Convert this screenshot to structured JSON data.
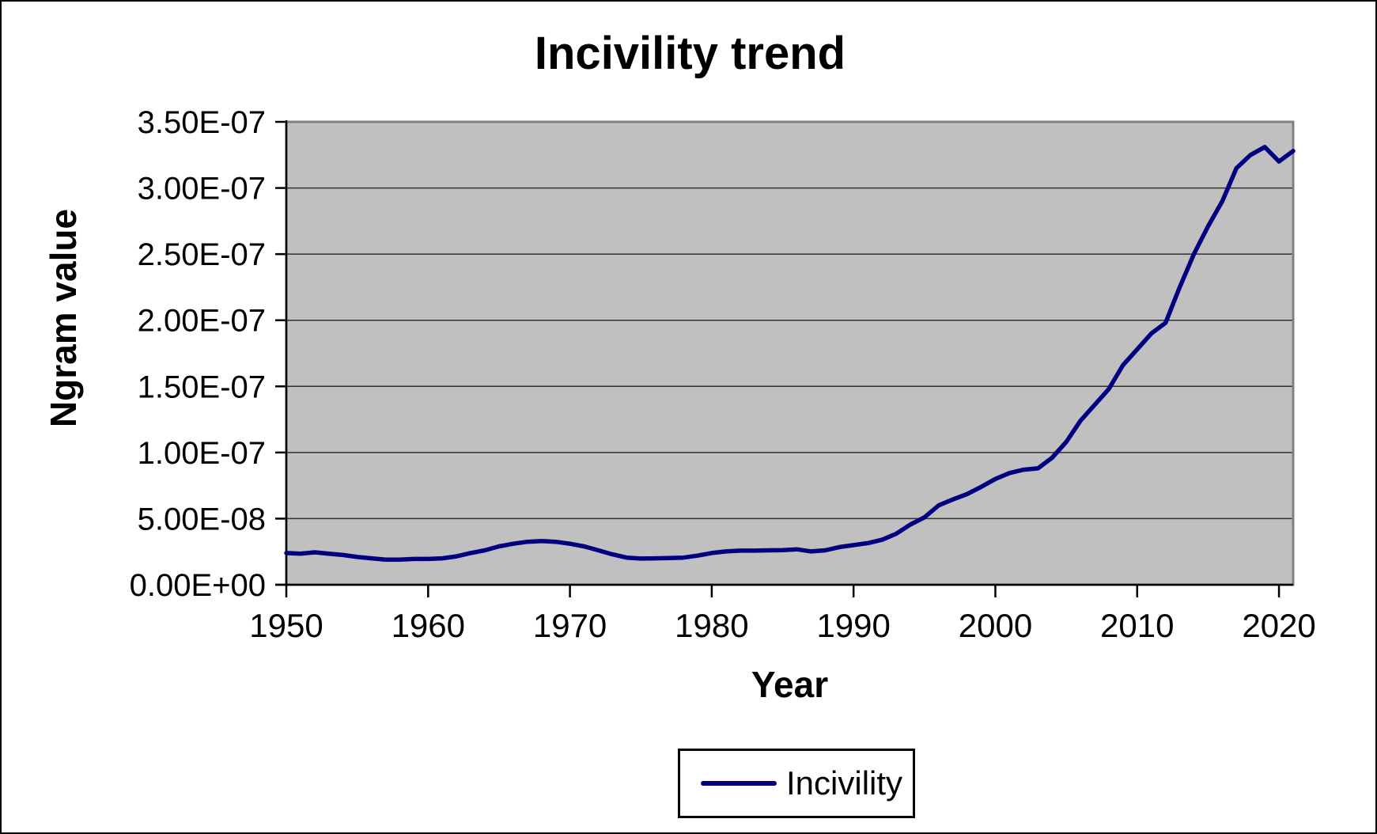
{
  "chart_data": {
    "type": "line",
    "title": "Incivility trend",
    "xlabel": "Year",
    "ylabel": "Ngram value",
    "legend": [
      "Incivility"
    ],
    "legend_position": "bottom",
    "grid": true,
    "ylim": [
      0,
      3.5e-07
    ],
    "xlim": [
      1950,
      2021
    ],
    "y_tick_labels": [
      "3.50E-07",
      "3.00E-07",
      "2.50E-07",
      "2.00E-07",
      "1.50E-07",
      "1.00E-07",
      "5.00E-08",
      "0.00E+00"
    ],
    "y_tick_values": [
      3.5e-07,
      3e-07,
      2.5e-07,
      2e-07,
      1.5e-07,
      1e-07,
      5e-08,
      0
    ],
    "x_ticks": [
      1950,
      1960,
      1970,
      1980,
      1990,
      2000,
      2010,
      2020
    ],
    "x": [
      1950,
      1951,
      1952,
      1953,
      1954,
      1955,
      1956,
      1957,
      1958,
      1959,
      1960,
      1961,
      1962,
      1963,
      1964,
      1965,
      1966,
      1967,
      1968,
      1969,
      1970,
      1971,
      1972,
      1973,
      1974,
      1975,
      1976,
      1977,
      1978,
      1979,
      1980,
      1981,
      1982,
      1983,
      1984,
      1985,
      1986,
      1987,
      1988,
      1989,
      1990,
      1991,
      1992,
      1993,
      1994,
      1995,
      1996,
      1997,
      1998,
      1999,
      2000,
      2001,
      2002,
      2003,
      2004,
      2005,
      2006,
      2007,
      2008,
      2009,
      2010,
      2011,
      2012,
      2013,
      2014,
      2015,
      2016,
      2017,
      2018,
      2019,
      2020,
      2021
    ],
    "series": [
      {
        "name": "Incivility",
        "values": [
          2.4e-08,
          2.35e-08,
          2.45e-08,
          2.35e-08,
          2.25e-08,
          2.1e-08,
          2e-08,
          1.9e-08,
          1.9e-08,
          1.95e-08,
          1.95e-08,
          2e-08,
          2.15e-08,
          2.4e-08,
          2.6e-08,
          2.9e-08,
          3.1e-08,
          3.25e-08,
          3.3e-08,
          3.25e-08,
          3.1e-08,
          2.9e-08,
          2.6e-08,
          2.3e-08,
          2.05e-08,
          1.98e-08,
          2e-08,
          2.02e-08,
          2.05e-08,
          2.2e-08,
          2.4e-08,
          2.52e-08,
          2.58e-08,
          2.58e-08,
          2.6e-08,
          2.62e-08,
          2.68e-08,
          2.52e-08,
          2.6e-08,
          2.85e-08,
          3e-08,
          3.15e-08,
          3.4e-08,
          3.85e-08,
          4.55e-08,
          5.1e-08,
          6e-08,
          6.45e-08,
          6.85e-08,
          7.4e-08,
          8e-08,
          8.45e-08,
          8.7e-08,
          8.8e-08,
          9.6e-08,
          1.08e-07,
          1.24e-07,
          1.36e-07,
          1.48e-07,
          1.66e-07,
          1.78e-07,
          1.9e-07,
          1.98e-07,
          2.25e-07,
          2.5e-07,
          2.71e-07,
          2.9e-07,
          3.15e-07,
          3.25e-07,
          3.31e-07,
          3.2e-07,
          3.28e-07
        ]
      }
    ],
    "colors": {
      "line": "#000080",
      "plot_background": "#c0c0c0",
      "plot_border": "#808080",
      "gridline": "#303030",
      "axis": "#000000",
      "text": "#000000"
    }
  }
}
